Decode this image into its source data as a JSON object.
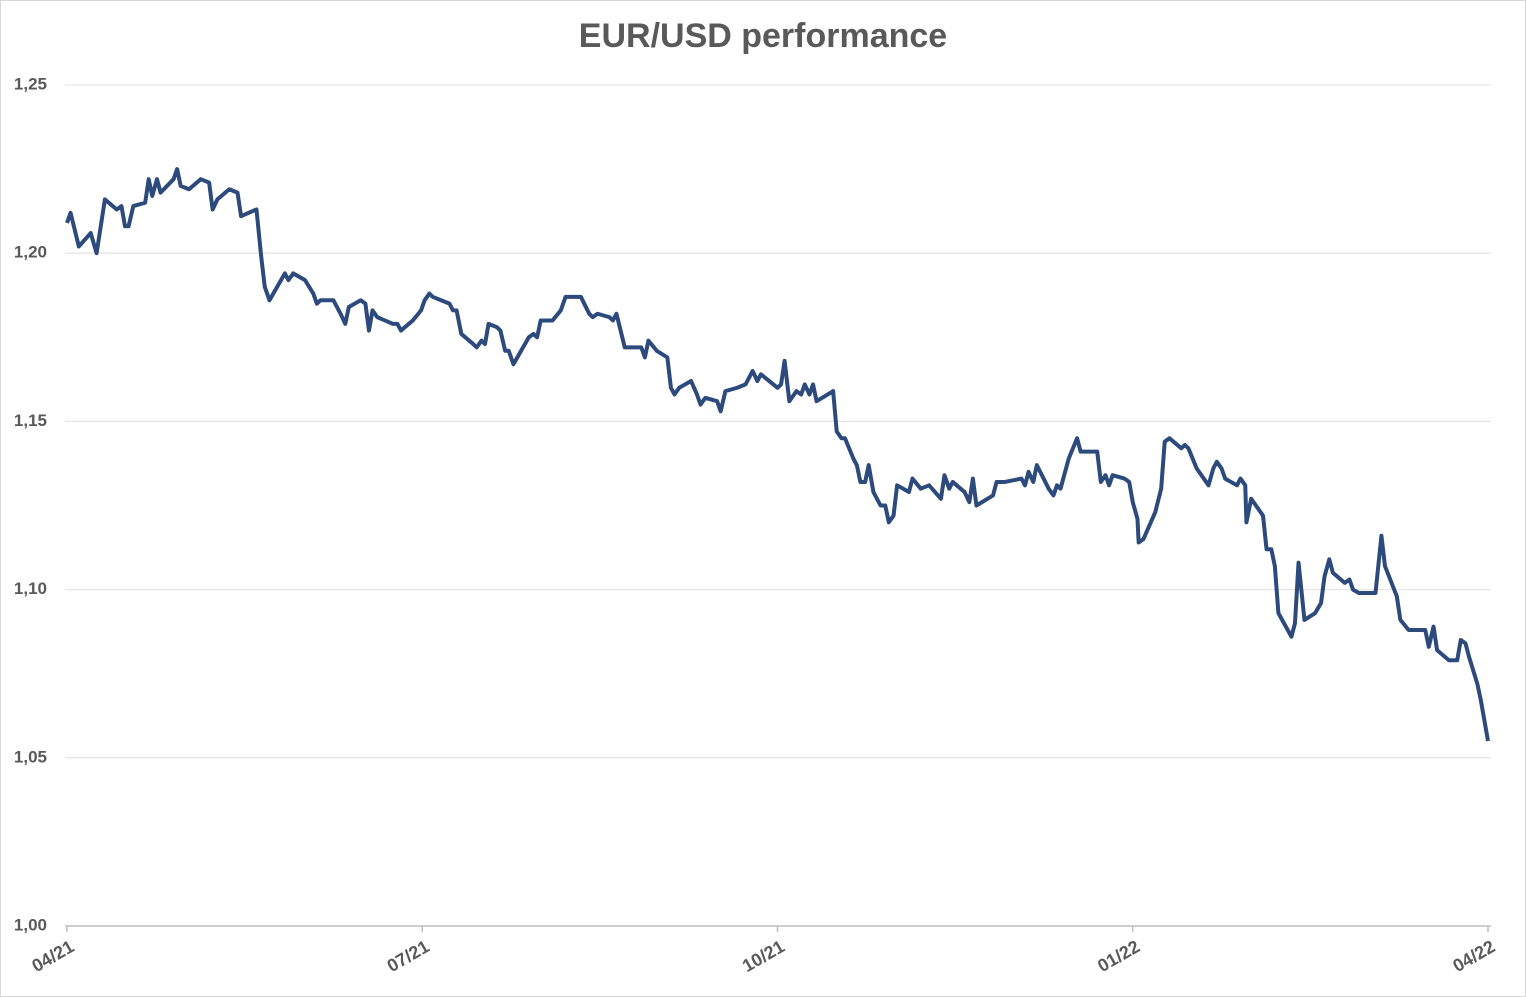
{
  "chart_data": {
    "type": "line",
    "title": "EUR/USD performance",
    "x": [
      0,
      0.03,
      0.1,
      0.2,
      0.25,
      0.32,
      0.42,
      0.46,
      0.49,
      0.52,
      0.56,
      0.66,
      0.69,
      0.72,
      0.76,
      0.79,
      0.9,
      0.93,
      0.96,
      1.03,
      1.13,
      1.2,
      1.23,
      1.27,
      1.37,
      1.44,
      1.47,
      1.6,
      1.64,
      1.67,
      1.71,
      1.84,
      1.87,
      1.91,
      2.01,
      2.08,
      2.11,
      2.14,
      2.25,
      2.31,
      2.35,
      2.38,
      2.48,
      2.52,
      2.55,
      2.58,
      2.62,
      2.75,
      2.79,
      2.82,
      2.92,
      2.99,
      3.02,
      3.06,
      3.09,
      3.23,
      3.26,
      3.29,
      3.33,
      3.43,
      3.46,
      3.5,
      3.53,
      3.56,
      3.63,
      3.66,
      3.7,
      3.73,
      3.77,
      3.9,
      3.94,
      3.97,
      4.0,
      4.1,
      4.17,
      4.21,
      4.27,
      4.34,
      4.41,
      4.44,
      4.48,
      4.58,
      4.61,
      4.64,
      4.71,
      4.85,
      4.88,
      4.91,
      4.98,
      5.07,
      5.1,
      5.13,
      5.17,
      5.27,
      5.32,
      5.35,
      5.39,
      5.49,
      5.52,
      5.56,
      5.66,
      5.73,
      5.76,
      5.79,
      5.83,
      5.86,
      6.0,
      6.03,
      6.06,
      6.1,
      6.16,
      6.2,
      6.23,
      6.27,
      6.3,
      6.33,
      6.47,
      6.5,
      6.54,
      6.57,
      6.64,
      6.67,
      6.7,
      6.74,
      6.77,
      6.81,
      6.87,
      6.91,
      6.94,
      6.98,
      7.01,
      7.11,
      7.14,
      7.21,
      7.28,
      7.38,
      7.41,
      7.45,
      7.48,
      7.58,
      7.62,
      7.65,
      7.68,
      7.82,
      7.85,
      7.92,
      8.06,
      8.09,
      8.12,
      8.16,
      8.19,
      8.29,
      8.33,
      8.36,
      8.39,
      8.46,
      8.53,
      8.56,
      8.7,
      8.73,
      8.77,
      8.8,
      8.83,
      8.93,
      8.97,
      9.0,
      9.04,
      9.05,
      9.09,
      9.19,
      9.24,
      9.27,
      9.31,
      9.41,
      9.44,
      9.47,
      9.54,
      9.64,
      9.68,
      9.71,
      9.75,
      9.78,
      9.88,
      9.91,
      9.95,
      9.96,
      10.0,
      10.1,
      10.13,
      10.17,
      10.2,
      10.23,
      10.34,
      10.37,
      10.4,
      10.45,
      10.54,
      10.59,
      10.62,
      10.66,
      10.69,
      10.79,
      10.83,
      10.86,
      10.91,
      11.05,
      11.1,
      11.13,
      11.23,
      11.26,
      11.33,
      11.47,
      11.5,
      11.54,
      11.57,
      11.67,
      11.74,
      11.77,
      11.81,
      11.84,
      11.91,
      11.94,
      12.0
    ],
    "series": [
      {
        "color": "#2d4a7c",
        "values": [
          1.209,
          1.212,
          1.202,
          1.206,
          1.2,
          1.216,
          1.213,
          1.214,
          1.208,
          1.208,
          1.214,
          1.215,
          1.222,
          1.217,
          1.222,
          1.218,
          1.222,
          1.225,
          1.22,
          1.219,
          1.222,
          1.221,
          1.213,
          1.216,
          1.219,
          1.218,
          1.211,
          1.213,
          1.199,
          1.19,
          1.186,
          1.194,
          1.192,
          1.194,
          1.192,
          1.188,
          1.185,
          1.186,
          1.186,
          1.182,
          1.179,
          1.184,
          1.186,
          1.185,
          1.177,
          1.183,
          1.181,
          1.179,
          1.179,
          1.177,
          1.18,
          1.183,
          1.186,
          1.188,
          1.187,
          1.185,
          1.183,
          1.183,
          1.176,
          1.173,
          1.172,
          1.174,
          1.173,
          1.179,
          1.178,
          1.177,
          1.171,
          1.171,
          1.167,
          1.175,
          1.176,
          1.175,
          1.18,
          1.18,
          1.183,
          1.187,
          1.187,
          1.187,
          1.182,
          1.181,
          1.182,
          1.181,
          1.18,
          1.182,
          1.172,
          1.172,
          1.169,
          1.174,
          1.171,
          1.169,
          1.16,
          1.158,
          1.16,
          1.162,
          1.158,
          1.155,
          1.157,
          1.156,
          1.153,
          1.159,
          1.16,
          1.161,
          1.163,
          1.165,
          1.162,
          1.164,
          1.16,
          1.161,
          1.168,
          1.156,
          1.159,
          1.158,
          1.161,
          1.158,
          1.161,
          1.156,
          1.159,
          1.147,
          1.145,
          1.145,
          1.139,
          1.137,
          1.132,
          1.132,
          1.137,
          1.129,
          1.125,
          1.125,
          1.12,
          1.122,
          1.131,
          1.129,
          1.133,
          1.13,
          1.131,
          1.127,
          1.134,
          1.13,
          1.132,
          1.129,
          1.126,
          1.133,
          1.125,
          1.128,
          1.132,
          1.132,
          1.133,
          1.131,
          1.135,
          1.132,
          1.137,
          1.13,
          1.128,
          1.131,
          1.13,
          1.139,
          1.145,
          1.141,
          1.141,
          1.132,
          1.134,
          1.131,
          1.134,
          1.133,
          1.132,
          1.126,
          1.121,
          1.114,
          1.115,
          1.123,
          1.13,
          1.144,
          1.145,
          1.142,
          1.143,
          1.142,
          1.136,
          1.131,
          1.136,
          1.138,
          1.136,
          1.133,
          1.131,
          1.133,
          1.131,
          1.12,
          1.127,
          1.122,
          1.112,
          1.112,
          1.107,
          1.093,
          1.086,
          1.09,
          1.108,
          1.091,
          1.093,
          1.096,
          1.104,
          1.109,
          1.105,
          1.102,
          1.103,
          1.1,
          1.099,
          1.099,
          1.116,
          1.107,
          1.098,
          1.091,
          1.088,
          1.088,
          1.083,
          1.089,
          1.082,
          1.079,
          1.079,
          1.085,
          1.084,
          1.08,
          1.072,
          1.067,
          1.055
        ]
      }
    ],
    "xlim": [
      0,
      12
    ],
    "xticks": [
      {
        "value": 0,
        "label": "04/21"
      },
      {
        "value": 3,
        "label": "07/21"
      },
      {
        "value": 6,
        "label": "10/21"
      },
      {
        "value": 9,
        "label": "01/22"
      },
      {
        "value": 12,
        "label": "04/22"
      }
    ],
    "ylim": [
      1.0,
      1.25
    ],
    "yticks": [
      {
        "value": 1.0,
        "label": "1,00"
      },
      {
        "value": 1.05,
        "label": "1,05"
      },
      {
        "value": 1.1,
        "label": "1,10"
      },
      {
        "value": 1.15,
        "label": "1,15"
      },
      {
        "value": 1.2,
        "label": "1,20"
      },
      {
        "value": 1.25,
        "label": "1,25"
      }
    ],
    "grid": true
  }
}
